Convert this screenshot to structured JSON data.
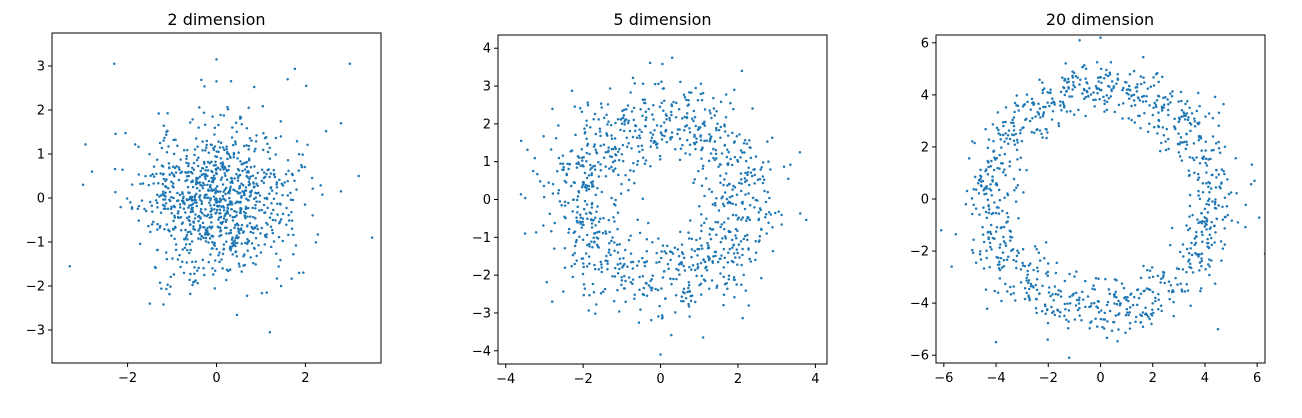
{
  "chart_data": [
    {
      "type": "scatter",
      "title": "2 dimension",
      "xlabel": "",
      "ylabel": "",
      "xlim": [
        -3.7,
        3.7
      ],
      "ylim": [
        -3.75,
        3.75
      ],
      "xticks": [
        -2,
        0,
        2
      ],
      "yticks": [
        -3,
        -2,
        -1,
        0,
        1,
        2,
        3
      ],
      "xtick_labels": [
        "−2",
        "0",
        "2"
      ],
      "ytick_labels": [
        "−3",
        "−2",
        "−1",
        "0",
        "1",
        "2",
        "3"
      ],
      "grid": false,
      "marker_color": "#1f77b4",
      "distribution": "2-D standard normal cloud, ~1000 points centered at (0, 0)",
      "x": [
        3.0,
        -3.3,
        3.5,
        -2.3,
        0.0,
        1.6,
        -3.0,
        3.2,
        0.0,
        2.8,
        -2.8,
        2.8,
        -1.5,
        1.2
      ],
      "y": [
        3.05,
        -1.55,
        -0.9,
        3.05,
        3.15,
        2.7,
        0.3,
        0.5,
        2.65,
        1.7,
        0.6,
        0.15,
        -2.4,
        -3.05
      ]
    },
    {
      "type": "scatter",
      "title": "5 dimension",
      "xlabel": "",
      "ylabel": "",
      "xlim": [
        -4.2,
        4.3
      ],
      "ylim": [
        -4.35,
        4.35
      ],
      "xticks": [
        -4,
        -2,
        0,
        2,
        4
      ],
      "yticks": [
        -4,
        -3,
        -2,
        -1,
        0,
        1,
        2,
        3,
        4
      ],
      "xtick_labels": [
        "−4",
        "−2",
        "0",
        "2",
        "4"
      ],
      "ytick_labels": [
        "−4",
        "−3",
        "−2",
        "−1",
        "0",
        "1",
        "2",
        "3",
        "4"
      ],
      "grid": false,
      "marker_color": "#1f77b4",
      "distribution": "ring of ~1000 points, radius about 2.2, centered at (0, 0)",
      "x": [
        -3.6,
        -3.5,
        3.6,
        3.3,
        0.3,
        -2.8,
        2.1,
        0.0,
        1.1
      ],
      "y": [
        1.55,
        -0.9,
        1.25,
        0.55,
        3.75,
        -2.7,
        3.4,
        -4.1,
        -3.65
      ]
    },
    {
      "type": "scatter",
      "title": "20 dimension",
      "xlabel": "",
      "ylabel": "",
      "xlim": [
        -6.3,
        6.3
      ],
      "ylim": [
        -6.3,
        6.3
      ],
      "xticks": [
        -6,
        -4,
        -2,
        0,
        2,
        4,
        6
      ],
      "yticks": [
        -6,
        -4,
        -2,
        0,
        2,
        4,
        6
      ],
      "xtick_labels": [
        "−6",
        "−4",
        "−2",
        "0",
        "2",
        "4",
        "6"
      ],
      "ytick_labels": [
        "−6",
        "−4",
        "−2",
        "0",
        "2",
        "4",
        "6"
      ],
      "grid": false,
      "marker_color": "#1f77b4",
      "distribution": "thin ring of ~1000 points, radius about 4.3, centered at (0, 0)",
      "x": [
        -6.1,
        -5.7,
        5.9,
        -0.8,
        0.0,
        6.3,
        -4.0,
        4.5,
        -1.2
      ],
      "y": [
        -1.2,
        -2.6,
        0.7,
        6.1,
        6.2,
        -2.1,
        -5.5,
        -5.0,
        -6.1
      ]
    }
  ]
}
